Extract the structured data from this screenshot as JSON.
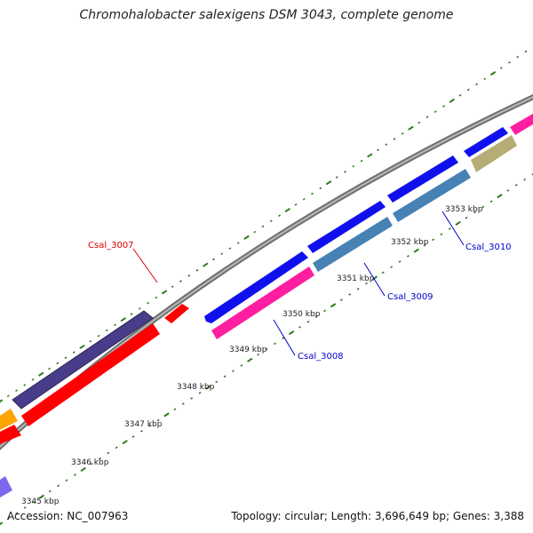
{
  "title": "Chromohalobacter salexigens DSM 3043, complete genome",
  "footer": {
    "accession": "Accession: NC_007963",
    "summary": "Topology: circular; Length: 3,696,649 bp; Genes: 3,388"
  },
  "colors": {
    "backbone": "#888888",
    "tick": "#2e7d1e",
    "label_default": "#0000cc",
    "label_highlight": "#dd0000",
    "gene_blue": "#1010ee",
    "gene_red": "#ff0000",
    "gene_pink": "#ff1ea0",
    "gene_steel": "#4682b4",
    "gene_khaki": "#b5ad75",
    "gene_navy": "#483d8b",
    "gene_orange": "#ffa500",
    "gene_violet": "#7b68ee"
  },
  "kbp_labels": [
    "3345 kbp",
    "3346 kbp",
    "3347 kbp",
    "3348 kbp",
    "3349 kbp",
    "3350 kbp",
    "3351 kbp",
    "3352 kbp",
    "3353 kbp"
  ],
  "gene_labels": [
    {
      "text": "Csal_3007",
      "color": "#dd0000"
    },
    {
      "text": "Csal_3008",
      "color": "#0000cc"
    },
    {
      "text": "Csal_3009",
      "color": "#0000cc"
    },
    {
      "text": "Csal_3010",
      "color": "#0000cc"
    }
  ]
}
